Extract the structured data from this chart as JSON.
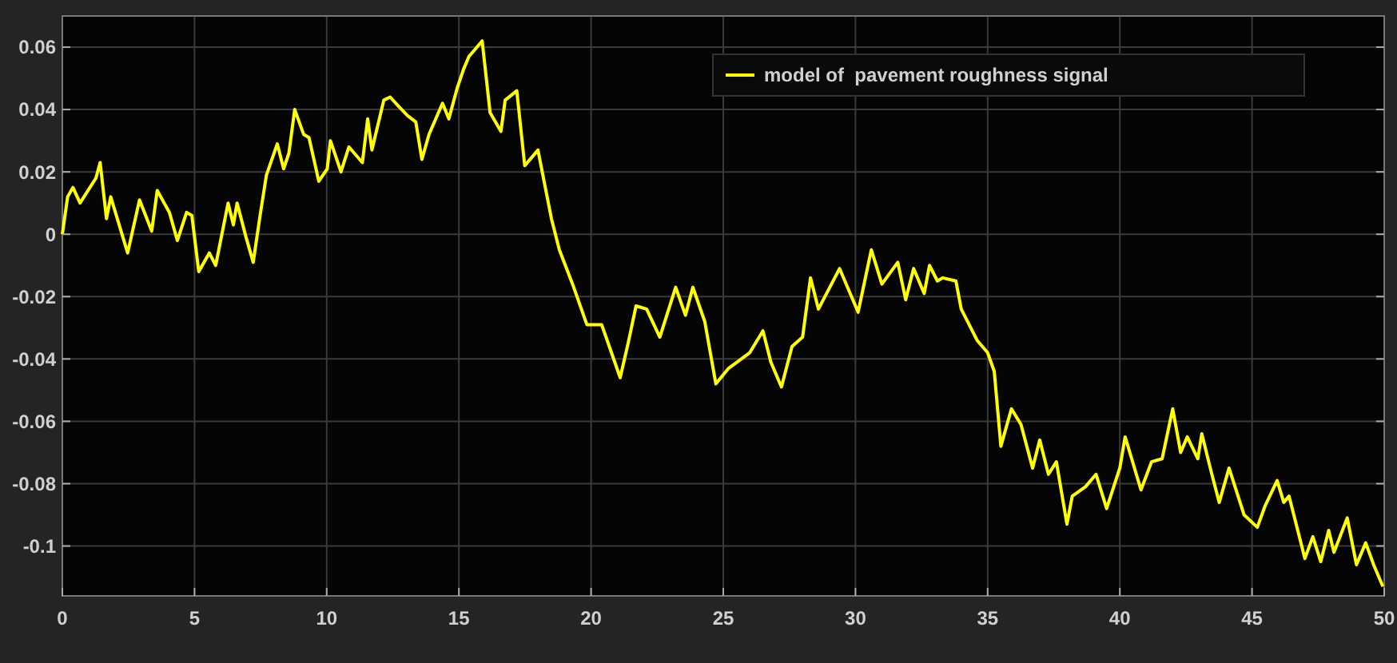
{
  "chart_data": {
    "type": "line",
    "xlim": [
      0,
      50
    ],
    "xticks": [
      0,
      5,
      10,
      15,
      20,
      25,
      30,
      35,
      40,
      45,
      50
    ],
    "ylim": [
      -0.116,
      0.07
    ],
    "yticks": [
      -0.1,
      -0.08,
      -0.06,
      -0.04,
      -0.02,
      0,
      0.02,
      0.04,
      0.06
    ],
    "grid": true,
    "legend": "top right",
    "line_style": "solid",
    "marker": "none",
    "series": [
      {
        "name": "model of  pavement roughness signal",
        "color": "#ffff00",
        "x": [
          0,
          0.2,
          0.4,
          0.67,
          1.27,
          1.43,
          1.67,
          1.83,
          2.47,
          2.92,
          3.38,
          3.59,
          4.05,
          4.35,
          4.7,
          4.9,
          5.16,
          5.56,
          5.8,
          6.27,
          6.47,
          6.61,
          6.95,
          7.22,
          7.48,
          7.72,
          8.13,
          8.37,
          8.57,
          8.79,
          9.13,
          9.33,
          9.7,
          10.02,
          10.14,
          10.54,
          10.84,
          11.35,
          11.55,
          11.71,
          12.16,
          12.4,
          12.72,
          13.06,
          13.37,
          13.6,
          13.87,
          14.38,
          14.62,
          14.94,
          15.18,
          15.38,
          15.88,
          16.18,
          16.59,
          16.75,
          17.19,
          17.49,
          17.99,
          18.5,
          18.8,
          19.3,
          19.84,
          20.4,
          21.1,
          21.4,
          21.7,
          22.1,
          22.6,
          23.2,
          23.57,
          23.85,
          24.3,
          24.72,
          25.2,
          26,
          26.5,
          26.8,
          27.2,
          27.6,
          28,
          28.3,
          28.6,
          29.4,
          30.1,
          30.6,
          31,
          31.6,
          31.9,
          32.2,
          32.6,
          32.8,
          33.1,
          33.3,
          33.8,
          34,
          34.6,
          35,
          35.25,
          35.5,
          35.9,
          36.26,
          36.7,
          36.97,
          37.3,
          37.6,
          38,
          38.2,
          38.7,
          39.1,
          39.5,
          40,
          40.2,
          40.8,
          41.2,
          41.6,
          42,
          42.3,
          42.55,
          42.95,
          43.1,
          43.45,
          43.76,
          44.13,
          44.7,
          45.2,
          45.5,
          45.95,
          46.2,
          46.4,
          47,
          47.3,
          47.6,
          47.9,
          48.1,
          48.6,
          48.95,
          49.3,
          49.6,
          49.95
        ],
        "values": [
          0,
          0.012,
          0.015,
          0.01,
          0.018,
          0.023,
          0.005,
          0.012,
          -0.006,
          0.011,
          0.001,
          0.014,
          0.007,
          -0.002,
          0.007,
          0.006,
          -0.012,
          -0.006,
          -0.01,
          0.01,
          0.003,
          0.01,
          -0.001,
          -0.009,
          0.006,
          0.019,
          0.029,
          0.021,
          0.026,
          0.04,
          0.032,
          0.031,
          0.017,
          0.021,
          0.03,
          0.02,
          0.028,
          0.023,
          0.037,
          0.027,
          0.043,
          0.044,
          0.041,
          0.038,
          0.036,
          0.024,
          0.032,
          0.042,
          0.037,
          0.047,
          0.053,
          0.057,
          0.062,
          0.039,
          0.033,
          0.043,
          0.046,
          0.022,
          0.027,
          0.005,
          -0.005,
          -0.016,
          -0.029,
          -0.029,
          -0.046,
          -0.035,
          -0.023,
          -0.024,
          -0.033,
          -0.017,
          -0.026,
          -0.017,
          -0.028,
          -0.048,
          -0.043,
          -0.038,
          -0.031,
          -0.041,
          -0.049,
          -0.036,
          -0.033,
          -0.014,
          -0.024,
          -0.011,
          -0.025,
          -0.005,
          -0.016,
          -0.009,
          -0.021,
          -0.011,
          -0.019,
          -0.01,
          -0.015,
          -0.014,
          -0.015,
          -0.024,
          -0.034,
          -0.038,
          -0.044,
          -0.068,
          -0.056,
          -0.061,
          -0.075,
          -0.066,
          -0.077,
          -0.073,
          -0.093,
          -0.084,
          -0.081,
          -0.077,
          -0.088,
          -0.075,
          -0.065,
          -0.082,
          -0.073,
          -0.072,
          -0.056,
          -0.07,
          -0.065,
          -0.072,
          -0.064,
          -0.076,
          -0.086,
          -0.075,
          -0.09,
          -0.094,
          -0.087,
          -0.079,
          -0.086,
          -0.084,
          -0.104,
          -0.097,
          -0.105,
          -0.095,
          -0.102,
          -0.091,
          -0.106,
          -0.099,
          -0.106,
          -0.113
        ]
      }
    ]
  }
}
